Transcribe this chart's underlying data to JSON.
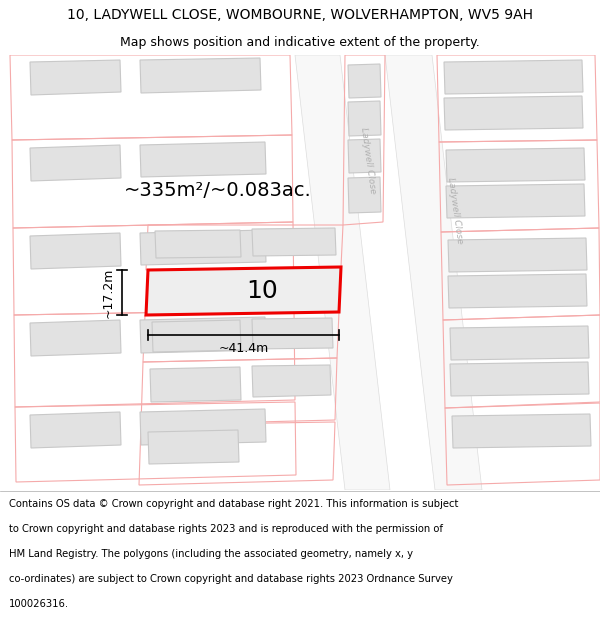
{
  "title_line1": "10, LADYWELL CLOSE, WOMBOURNE, WOLVERHAMPTON, WV5 9AH",
  "title_line2": "Map shows position and indicative extent of the property.",
  "footer_lines": [
    "Contains OS data © Crown copyright and database right 2021. This information is subject",
    "to Crown copyright and database rights 2023 and is reproduced with the permission of",
    "HM Land Registry. The polygons (including the associated geometry, namely x, y",
    "co-ordinates) are subject to Crown copyright and database rights 2023 Ordnance Survey",
    "100026316."
  ],
  "area_label": "~335m²/~0.083ac.",
  "number_label": "10",
  "width_label": "~41.4m",
  "height_label": "~17.2m",
  "bg_color": "#ffffff",
  "map_bg": "#f0f0f0",
  "building_fill": "#e2e2e2",
  "building_edge": "#c8c8c8",
  "highlight_fill": "#eeeeee",
  "highlight_edge": "#ee0000",
  "pink_line_color": "#f5aaaa",
  "road_fill": "#f8f8f8",
  "road_label_color": "#b0b0b0",
  "title_fontsize": 10,
  "subtitle_fontsize": 9,
  "footer_fontsize": 7.2,
  "area_fontsize": 14,
  "number_fontsize": 18,
  "dim_fontsize": 9
}
